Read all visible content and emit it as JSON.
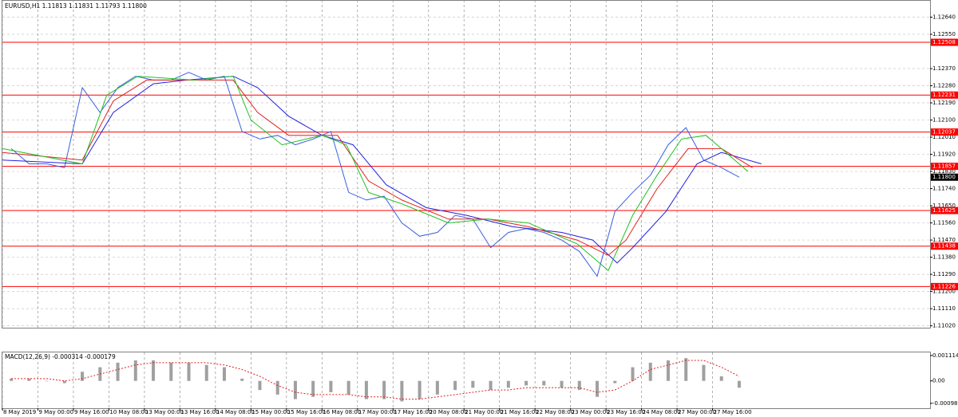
{
  "chart_data": [
    {
      "type": "line",
      "title": "EURUSD,H1  1.11813 1.11831 1.11793 1.11800",
      "xlim": [
        0,
        418
      ],
      "xticks": [
        {
          "value": 0,
          "label": "8 May 2019"
        },
        {
          "value": 16,
          "label": "9 May 00:00"
        },
        {
          "value": 32,
          "label": "9 May 16:00"
        },
        {
          "value": 48,
          "label": "10 May 08:00"
        },
        {
          "value": 64,
          "label": "13 May 00:00"
        },
        {
          "value": 80,
          "label": "13 May 16:00"
        },
        {
          "value": 96,
          "label": "14 May 08:00"
        },
        {
          "value": 112,
          "label": "15 May 00:00"
        },
        {
          "value": 128,
          "label": "15 May 16:00"
        },
        {
          "value": 144,
          "label": "16 May 08:00"
        },
        {
          "value": 160,
          "label": "17 May 00:00"
        },
        {
          "value": 176,
          "label": "17 May 16:00"
        },
        {
          "value": 192,
          "label": "20 May 08:00"
        },
        {
          "value": 208,
          "label": "21 May 00:00"
        },
        {
          "value": 224,
          "label": "21 May 16:00"
        },
        {
          "value": 240,
          "label": "22 May 08:00"
        },
        {
          "value": 256,
          "label": "23 May 00:00"
        },
        {
          "value": 272,
          "label": "23 May 16:00"
        },
        {
          "value": 288,
          "label": "24 May 08:00"
        },
        {
          "value": 304,
          "label": "27 May 00:00"
        },
        {
          "value": 320,
          "label": "27 May 16:00"
        }
      ],
      "ylim": [
        1.1101,
        1.1273
      ],
      "yticks": [
        {
          "value": 1.1264,
          "label": "1.12640"
        },
        {
          "value": 1.1255,
          "label": "1.12550"
        },
        {
          "value": 1.1237,
          "label": "1.12370"
        },
        {
          "value": 1.1228,
          "label": "1.12280"
        },
        {
          "value": 1.1219,
          "label": "1.12190"
        },
        {
          "value": 1.121,
          "label": "1.12100"
        },
        {
          "value": 1.1201,
          "label": "1.12010"
        },
        {
          "value": 1.1192,
          "label": "1.11920"
        },
        {
          "value": 1.1183,
          "label": "1.11830"
        },
        {
          "value": 1.1174,
          "label": "1.11740"
        },
        {
          "value": 1.1165,
          "label": "1.11650"
        },
        {
          "value": 1.1156,
          "label": "1.11560"
        },
        {
          "value": 1.1147,
          "label": "1.11470"
        },
        {
          "value": 1.1138,
          "label": "1.11380"
        },
        {
          "value": 1.1129,
          "label": "1.11290"
        },
        {
          "value": 1.112,
          "label": "1.11200"
        },
        {
          "value": 1.1111,
          "label": "1.11110"
        },
        {
          "value": 1.1102,
          "label": "1.11020"
        }
      ],
      "grid": true,
      "levels": [
        {
          "value": 1.12508,
          "label": "1.12508"
        },
        {
          "value": 1.12231,
          "label": "1.12231"
        },
        {
          "value": 1.12037,
          "label": "1.12037"
        },
        {
          "value": 1.11857,
          "label": "1.11857"
        },
        {
          "value": 1.11625,
          "label": "1.11625"
        },
        {
          "value": 1.11438,
          "label": "1.11438"
        },
        {
          "value": 1.11226,
          "label": "1.11226"
        }
      ],
      "level_color": "#ff0000",
      "current_price": {
        "value": 1.118,
        "label": "1.11800"
      },
      "series": [
        {
          "color": "#3b5fe0",
          "x": [
            4,
            12,
            20,
            28,
            36,
            44,
            52,
            60,
            68,
            76,
            84,
            92,
            100,
            108,
            116,
            124,
            132,
            140,
            148,
            156,
            164,
            172,
            180,
            188,
            196,
            204,
            212,
            220,
            228,
            236,
            244,
            252,
            260,
            268,
            276,
            284,
            292,
            300,
            308,
            316,
            324,
            332
          ],
          "values": [
            1.1195,
            1.1187,
            1.1187,
            1.1185,
            1.1227,
            1.1214,
            1.1227,
            1.1233,
            1.1231,
            1.1231,
            1.1235,
            1.1231,
            1.1233,
            1.1204,
            1.12,
            1.1202,
            1.1197,
            1.12,
            1.1204,
            1.1172,
            1.1168,
            1.117,
            1.1156,
            1.1149,
            1.1151,
            1.116,
            1.1158,
            1.1143,
            1.1151,
            1.1153,
            1.1151,
            1.1147,
            1.1141,
            1.1128,
            1.1162,
            1.1172,
            1.1181,
            1.1197,
            1.1206,
            1.1189,
            1.1185,
            1.118
          ]
        },
        {
          "color": "#2020e0",
          "x": [
            0,
            36,
            50,
            68,
            83,
            104,
            115,
            129,
            144,
            158,
            173,
            191,
            209,
            230,
            252,
            266,
            277,
            284,
            299,
            313,
            324,
            342
          ],
          "values": [
            1.1189,
            1.1187,
            1.1214,
            1.1229,
            1.1231,
            1.1233,
            1.1227,
            1.1212,
            1.1202,
            1.1197,
            1.1176,
            1.1164,
            1.116,
            1.1154,
            1.1151,
            1.1147,
            1.1135,
            1.1143,
            1.1162,
            1.1187,
            1.1193,
            1.1187
          ]
        },
        {
          "color": "#e02020",
          "x": [
            0,
            36,
            50,
            65,
            86,
            104,
            115,
            129,
            151,
            165,
            180,
            201,
            219,
            237,
            259,
            273,
            281,
            295,
            309,
            324,
            338
          ],
          "values": [
            1.1193,
            1.1189,
            1.122,
            1.1231,
            1.1231,
            1.1231,
            1.1214,
            1.1202,
            1.1202,
            1.1178,
            1.1168,
            1.1158,
            1.1158,
            1.1154,
            1.1147,
            1.1139,
            1.1147,
            1.1174,
            1.1195,
            1.1195,
            1.1185
          ]
        },
        {
          "color": "#20c020",
          "x": [
            0,
            36,
            47,
            61,
            86,
            104,
            112,
            126,
            144,
            155,
            165,
            180,
            201,
            219,
            237,
            259,
            273,
            284,
            295,
            306,
            317,
            336
          ],
          "values": [
            1.1195,
            1.1187,
            1.1223,
            1.1233,
            1.1231,
            1.1233,
            1.121,
            1.1197,
            1.1202,
            1.1197,
            1.1172,
            1.1166,
            1.1156,
            1.1158,
            1.1156,
            1.1145,
            1.1131,
            1.116,
            1.1181,
            1.12,
            1.1202,
            1.1183
          ]
        }
      ]
    },
    {
      "type": "macd",
      "title": "MACD(12,26,9) -0.000314 -0.000179",
      "xlim": [
        0,
        418
      ],
      "ylim": [
        -0.0012,
        0.00125
      ],
      "yticks": [
        0.001114,
        {
          "value": 0,
          "label": "0.00"
        },
        -0.000986
      ],
      "series": [
        {
          "type": "bar",
          "color": "#a0a0a0",
          "x": [
            4,
            12,
            20,
            28,
            36,
            44,
            52,
            60,
            68,
            76,
            84,
            92,
            100,
            108,
            116,
            124,
            132,
            140,
            148,
            156,
            164,
            172,
            180,
            188,
            196,
            204,
            212,
            220,
            228,
            236,
            244,
            252,
            260,
            268,
            276,
            284,
            292,
            300,
            308,
            316,
            324,
            332
          ],
          "values": [
            0.0001,
            0.0001,
            0,
            -0.0001,
            0.0004,
            0.0006,
            0.0008,
            0.0009,
            0.0009,
            0.0008,
            0.0008,
            0.0007,
            0.0006,
            0.0001,
            -0.0004,
            -0.0006,
            -0.0008,
            -0.0007,
            -0.0005,
            -0.0006,
            -0.0008,
            -0.0008,
            -0.0009,
            -0.0008,
            -0.0006,
            -0.0004,
            -0.0003,
            -0.0004,
            -0.0003,
            -0.0002,
            -0.0002,
            -0.0003,
            -0.0004,
            -0.0007,
            -0.0001,
            0.0006,
            0.0008,
            0.0009,
            0.001,
            0.0007,
            0.0002,
            -0.0003
          ]
        },
        {
          "type": "line",
          "color": "#e02020",
          "x": [
            4,
            12,
            20,
            28,
            36,
            44,
            52,
            60,
            68,
            76,
            84,
            92,
            100,
            108,
            116,
            124,
            132,
            140,
            148,
            156,
            164,
            172,
            180,
            188,
            196,
            204,
            212,
            220,
            228,
            236,
            244,
            252,
            260,
            268,
            276,
            284,
            292,
            300,
            308,
            316,
            324,
            332
          ],
          "values": [
            0.0001,
            0.0001,
            0.0001,
            0,
            0.0001,
            0.0003,
            0.0005,
            0.0007,
            0.0008,
            0.0008,
            0.0008,
            0.0008,
            0.0007,
            0.0005,
            0.0002,
            -0.0002,
            -0.0005,
            -0.0006,
            -0.0006,
            -0.0006,
            -0.0007,
            -0.0007,
            -0.0008,
            -0.0008,
            -0.0007,
            -0.0006,
            -0.0005,
            -0.0004,
            -0.0004,
            -0.0003,
            -0.0003,
            -0.0003,
            -0.0003,
            -0.0005,
            -0.0004,
            0,
            0.0005,
            0.0007,
            0.0009,
            0.0009,
            0.0006,
            0.0002
          ]
        }
      ]
    }
  ]
}
